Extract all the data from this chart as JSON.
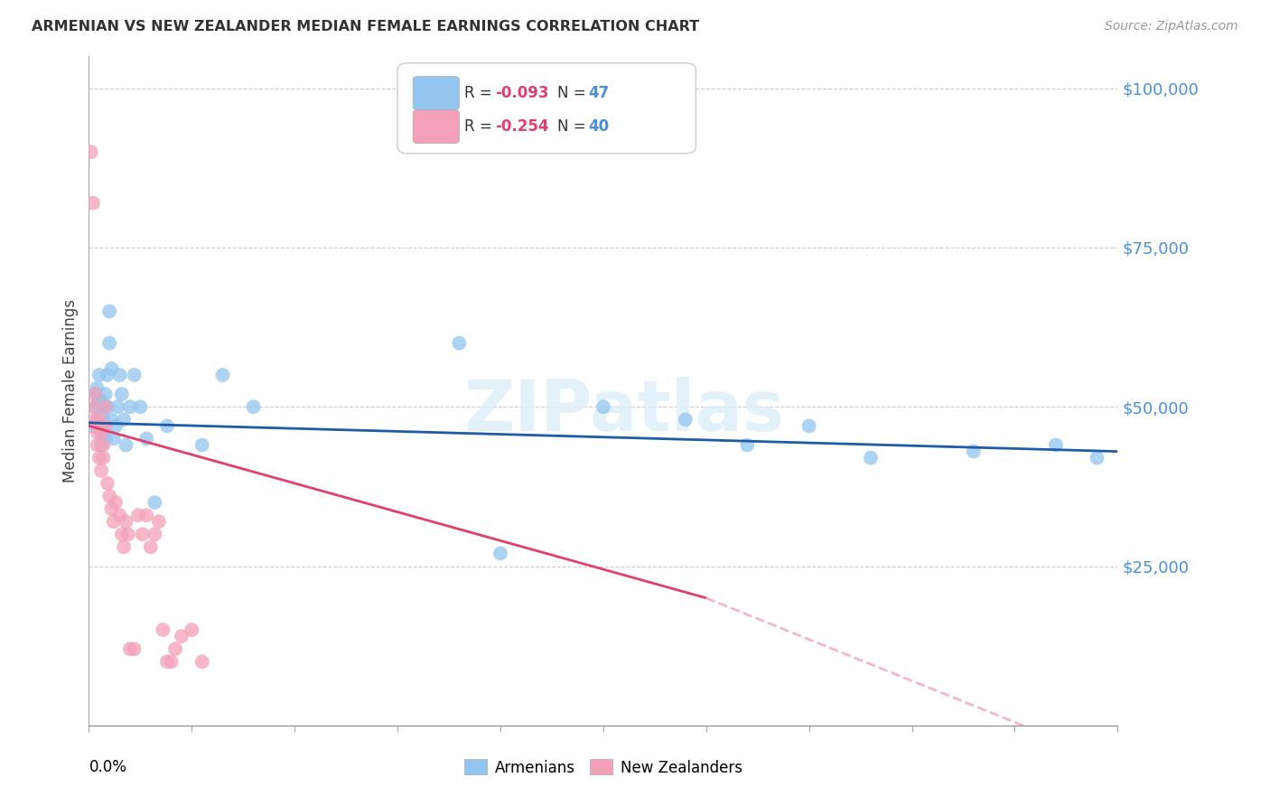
{
  "title": "ARMENIAN VS NEW ZEALANDER MEDIAN FEMALE EARNINGS CORRELATION CHART",
  "source": "Source: ZipAtlas.com",
  "ylabel": "Median Female Earnings",
  "yticks": [
    0,
    25000,
    50000,
    75000,
    100000
  ],
  "ytick_labels": [
    "",
    "$25,000",
    "$50,000",
    "$75,000",
    "$100,000"
  ],
  "xlim": [
    0.0,
    0.5
  ],
  "ylim": [
    0,
    105000
  ],
  "legend_r_arm": "-0.093",
  "legend_n_arm": "47",
  "legend_r_nz": "-0.254",
  "legend_n_nz": "40",
  "armenians_color": "#92c5f0",
  "nz_color": "#f4a0b8",
  "line_armenians_color": "#1e5ca8",
  "line_nz_color": "#e0406a",
  "line_nz_dashed_color": "#f0b8c8",
  "watermark": "ZIPatlas",
  "armenians_x": [
    0.002,
    0.003,
    0.003,
    0.004,
    0.004,
    0.005,
    0.005,
    0.006,
    0.006,
    0.006,
    0.007,
    0.007,
    0.007,
    0.008,
    0.008,
    0.009,
    0.009,
    0.01,
    0.01,
    0.011,
    0.011,
    0.012,
    0.013,
    0.014,
    0.015,
    0.016,
    0.017,
    0.018,
    0.02,
    0.022,
    0.025,
    0.028,
    0.032,
    0.038,
    0.055,
    0.065,
    0.08,
    0.18,
    0.2,
    0.32,
    0.38,
    0.43,
    0.47,
    0.49,
    0.35,
    0.29,
    0.25
  ],
  "armenians_y": [
    47000,
    50000,
    52000,
    48000,
    53000,
    50000,
    55000,
    47000,
    51000,
    44000,
    46000,
    50000,
    48000,
    52000,
    45000,
    55000,
    50000,
    60000,
    65000,
    56000,
    48000,
    45000,
    47000,
    50000,
    55000,
    52000,
    48000,
    44000,
    50000,
    55000,
    50000,
    45000,
    35000,
    47000,
    44000,
    55000,
    50000,
    60000,
    27000,
    44000,
    42000,
    43000,
    44000,
    42000,
    47000,
    48000,
    50000
  ],
  "nz_x": [
    0.001,
    0.002,
    0.002,
    0.003,
    0.003,
    0.004,
    0.004,
    0.005,
    0.005,
    0.006,
    0.006,
    0.007,
    0.007,
    0.008,
    0.008,
    0.009,
    0.01,
    0.011,
    0.012,
    0.013,
    0.015,
    0.016,
    0.017,
    0.018,
    0.019,
    0.02,
    0.022,
    0.024,
    0.026,
    0.028,
    0.03,
    0.032,
    0.034,
    0.036,
    0.038,
    0.04,
    0.042,
    0.045,
    0.05,
    0.055
  ],
  "nz_y": [
    90000,
    82000,
    50000,
    52000,
    48000,
    46000,
    44000,
    48000,
    42000,
    46000,
    40000,
    44000,
    42000,
    50000,
    47000,
    38000,
    36000,
    34000,
    32000,
    35000,
    33000,
    30000,
    28000,
    32000,
    30000,
    12000,
    12000,
    33000,
    30000,
    33000,
    28000,
    30000,
    32000,
    15000,
    10000,
    10000,
    12000,
    14000,
    15000,
    10000
  ]
}
